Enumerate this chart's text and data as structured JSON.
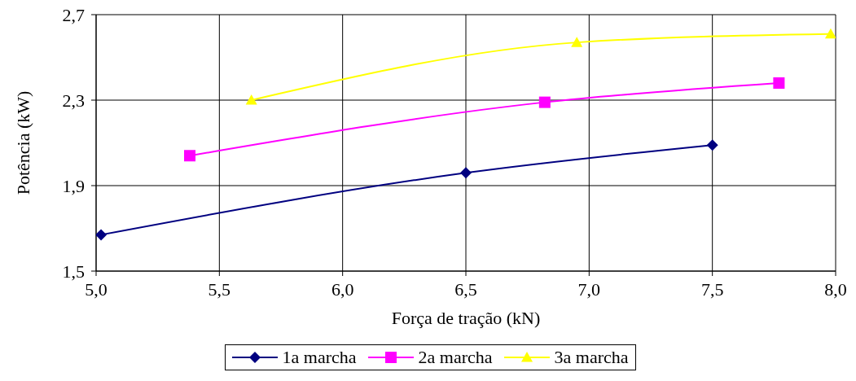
{
  "chart_data": {
    "type": "line",
    "xlabel": "Força de tração (kN)",
    "ylabel": "Potência (kW)",
    "xlim": [
      5,
      8
    ],
    "xticks": [
      {
        "value": 5,
        "label": "5,0"
      },
      {
        "value": 5.5,
        "label": "5,5"
      },
      {
        "value": 6,
        "label": "6,0"
      },
      {
        "value": 6.5,
        "label": "6,5"
      },
      {
        "value": 7,
        "label": "7,0"
      },
      {
        "value": 7.5,
        "label": "7,5"
      },
      {
        "value": 8,
        "label": "8,0"
      }
    ],
    "ylim": [
      1.5,
      2.7
    ],
    "yticks": [
      {
        "value": 1.5,
        "label": "1,5"
      },
      {
        "value": 1.9,
        "label": "1,9"
      },
      {
        "value": 2.3,
        "label": "2,3"
      },
      {
        "value": 2.7,
        "label": "2,7"
      }
    ],
    "grid": true,
    "legend": "bottom",
    "series": [
      {
        "name": "1a marcha",
        "color": "#000080",
        "marker": "diamond",
        "x": [
          5.02,
          6.5,
          7.5
        ],
        "values": [
          1.67,
          1.96,
          2.09
        ]
      },
      {
        "name": "2a marcha",
        "color": "#ff00ff",
        "marker": "square",
        "x": [
          5.38,
          6.82,
          7.77
        ],
        "values": [
          2.04,
          2.29,
          2.38
        ]
      },
      {
        "name": "3a marcha",
        "color": "#ffff00",
        "marker": "triangle",
        "x": [
          5.63,
          6.95,
          7.98
        ],
        "values": [
          2.3,
          2.57,
          2.61
        ]
      }
    ]
  }
}
